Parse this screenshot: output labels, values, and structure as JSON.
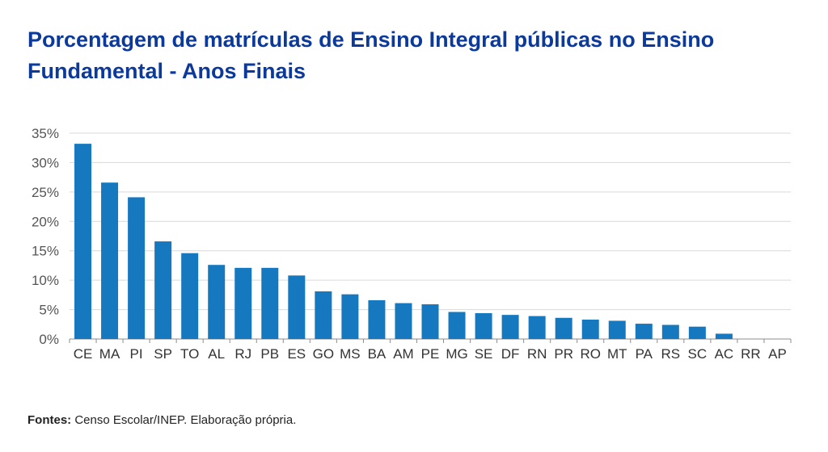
{
  "chart_data": {
    "type": "bar",
    "title": "Porcentagem de matrículas de Ensino Integral públicas no Ensino Fundamental - Anos Finais",
    "categories": [
      "CE",
      "MA",
      "PI",
      "SP",
      "TO",
      "AL",
      "RJ",
      "PB",
      "ES",
      "GO",
      "MS",
      "BA",
      "AM",
      "PE",
      "MG",
      "SE",
      "DF",
      "RN",
      "PR",
      "RO",
      "MT",
      "PA",
      "RS",
      "SC",
      "AC",
      "RR",
      "AP"
    ],
    "values": [
      33.2,
      26.6,
      24.1,
      16.6,
      14.6,
      12.6,
      12.1,
      12.1,
      10.8,
      8.1,
      7.6,
      6.6,
      6.1,
      5.9,
      4.6,
      4.4,
      4.1,
      3.9,
      3.6,
      3.3,
      3.1,
      2.6,
      2.4,
      2.1,
      0.9,
      0.0,
      0.0
    ],
    "ylim": [
      0,
      35
    ],
    "yticks": [
      "0%",
      "5%",
      "10%",
      "15%",
      "20%",
      "25%",
      "30%",
      "35%"
    ],
    "xlabel": "",
    "ylabel": "",
    "grid": true,
    "bar_color": "#1679c0",
    "grid_color": "#d9d9d9"
  },
  "footer": {
    "source_label": "Fontes:",
    "source_text": " Censo Escolar/INEP. Elaboração própria."
  }
}
